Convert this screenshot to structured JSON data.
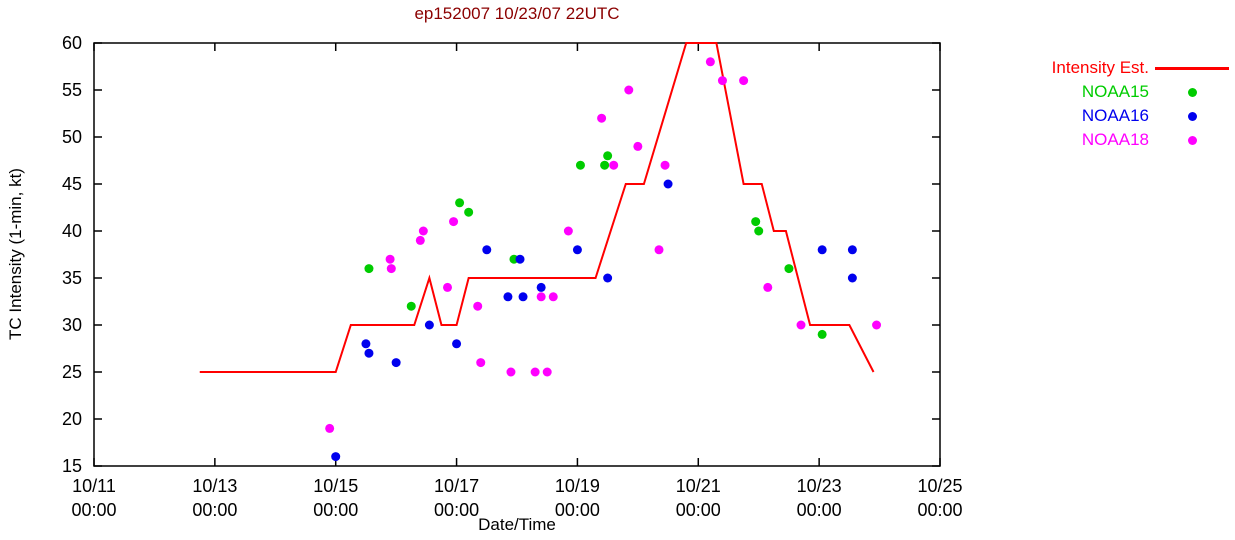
{
  "title": "ep152007 10/23/07 22UTC",
  "title_color": "#8b0000",
  "x_axis_label": "Date/Time",
  "y_axis_label": "TC Intensity (1-min, kt)",
  "colors": {
    "intensity_line": "#ff0000",
    "noaa15": "#00cc00",
    "noaa16": "#0000ee",
    "noaa18": "#ff00ff",
    "axis": "#000000",
    "background": "#ffffff"
  },
  "legend": {
    "items": [
      {
        "label": "Intensity Est.",
        "color": "#ff0000",
        "marker": "line"
      },
      {
        "label": "NOAA15",
        "color": "#00cc00",
        "marker": "dot"
      },
      {
        "label": "NOAA16",
        "color": "#0000ee",
        "marker": "dot"
      },
      {
        "label": "NOAA18",
        "color": "#ff00ff",
        "marker": "dot"
      }
    ]
  },
  "chart_data": {
    "type": "line",
    "title": "ep152007 10/23/07 22UTC",
    "xlabel": "Date/Time",
    "ylabel": "TC Intensity (1-min, kt)",
    "x_units": "days since 10/11 00:00 UTC",
    "xlim": [
      0,
      14
    ],
    "ylim": [
      15,
      60
    ],
    "grid": false,
    "legend_position": "outside-top-right",
    "y_ticks": [
      15,
      20,
      25,
      30,
      35,
      40,
      45,
      50,
      55,
      60
    ],
    "x_ticks": [
      {
        "pos": 0,
        "date": "10/11",
        "time": "00:00"
      },
      {
        "pos": 2,
        "date": "10/13",
        "time": "00:00"
      },
      {
        "pos": 4,
        "date": "10/15",
        "time": "00:00"
      },
      {
        "pos": 6,
        "date": "10/17",
        "time": "00:00"
      },
      {
        "pos": 8,
        "date": "10/19",
        "time": "00:00"
      },
      {
        "pos": 10,
        "date": "10/21",
        "time": "00:00"
      },
      {
        "pos": 12,
        "date": "10/23",
        "time": "00:00"
      },
      {
        "pos": 14,
        "date": "10/25",
        "time": "00:00"
      }
    ],
    "series": [
      {
        "name": "Intensity Est.",
        "type": "line",
        "color": "#ff0000",
        "points": [
          [
            1.75,
            25
          ],
          [
            4.0,
            25
          ],
          [
            4.25,
            30
          ],
          [
            5.3,
            30
          ],
          [
            5.55,
            35
          ],
          [
            5.75,
            30
          ],
          [
            6.0,
            30
          ],
          [
            6.2,
            35
          ],
          [
            8.3,
            35
          ],
          [
            8.8,
            45
          ],
          [
            9.1,
            45
          ],
          [
            9.8,
            60
          ],
          [
            10.3,
            60
          ],
          [
            10.75,
            45
          ],
          [
            11.05,
            45
          ],
          [
            11.25,
            40
          ],
          [
            11.45,
            40
          ],
          [
            11.85,
            30
          ],
          [
            12.5,
            30
          ],
          [
            12.9,
            25
          ]
        ]
      },
      {
        "name": "NOAA15",
        "type": "scatter",
        "color": "#00cc00",
        "points": [
          [
            4.55,
            36
          ],
          [
            5.25,
            32
          ],
          [
            6.05,
            43
          ],
          [
            6.2,
            42
          ],
          [
            6.95,
            37
          ],
          [
            8.05,
            47
          ],
          [
            8.45,
            47
          ],
          [
            8.5,
            48
          ],
          [
            10.95,
            41
          ],
          [
            11.0,
            40
          ],
          [
            11.5,
            36
          ],
          [
            12.05,
            29
          ]
        ]
      },
      {
        "name": "NOAA16",
        "type": "scatter",
        "color": "#0000ee",
        "points": [
          [
            4.0,
            16
          ],
          [
            4.5,
            28
          ],
          [
            4.55,
            27
          ],
          [
            5.0,
            26
          ],
          [
            5.55,
            30
          ],
          [
            6.0,
            28
          ],
          [
            6.5,
            38
          ],
          [
            6.85,
            33
          ],
          [
            7.05,
            37
          ],
          [
            7.1,
            33
          ],
          [
            7.4,
            34
          ],
          [
            8.0,
            38
          ],
          [
            8.5,
            35
          ],
          [
            9.5,
            45
          ],
          [
            12.05,
            38
          ],
          [
            12.55,
            38
          ],
          [
            12.55,
            35
          ]
        ]
      },
      {
        "name": "NOAA18",
        "type": "scatter",
        "color": "#ff00ff",
        "points": [
          [
            3.9,
            19
          ],
          [
            4.9,
            37
          ],
          [
            4.92,
            36
          ],
          [
            5.4,
            39
          ],
          [
            5.45,
            40
          ],
          [
            5.85,
            34
          ],
          [
            5.95,
            41
          ],
          [
            6.35,
            32
          ],
          [
            6.4,
            26
          ],
          [
            6.9,
            25
          ],
          [
            7.3,
            25
          ],
          [
            7.4,
            33
          ],
          [
            7.5,
            25
          ],
          [
            7.6,
            33
          ],
          [
            7.85,
            40
          ],
          [
            8.4,
            52
          ],
          [
            8.6,
            47
          ],
          [
            8.85,
            55
          ],
          [
            9.0,
            49
          ],
          [
            9.35,
            38
          ],
          [
            9.45,
            47
          ],
          [
            10.2,
            58
          ],
          [
            10.4,
            56
          ],
          [
            10.75,
            56
          ],
          [
            11.15,
            34
          ],
          [
            11.7,
            30
          ],
          [
            12.95,
            30
          ]
        ]
      }
    ]
  }
}
